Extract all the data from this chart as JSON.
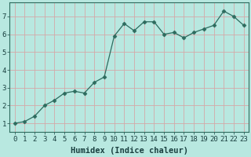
{
  "x": [
    0,
    1,
    2,
    3,
    4,
    5,
    6,
    7,
    8,
    9,
    10,
    11,
    12,
    13,
    14,
    15,
    16,
    17,
    18,
    19,
    20,
    21,
    22,
    23
  ],
  "y": [
    1.0,
    1.1,
    1.4,
    2.0,
    2.3,
    2.7,
    2.8,
    2.7,
    3.3,
    3.6,
    5.9,
    6.6,
    6.2,
    6.7,
    6.7,
    6.0,
    6.1,
    5.8,
    6.1,
    6.3,
    6.5,
    7.3,
    7.0,
    6.5
  ],
  "line_color": "#2d6b5e",
  "marker": "D",
  "marker_size": 2.5,
  "bg_color": "#b8e8e0",
  "grid_color": "#d4a8a8",
  "xlabel": "Humidex (Indice chaleur)",
  "xlabel_fontsize": 7.5,
  "tick_fontsize": 6.5,
  "ylim": [
    0.5,
    7.8
  ],
  "xlim": [
    -0.5,
    23.5
  ],
  "yticks": [
    1,
    2,
    3,
    4,
    5,
    6,
    7
  ],
  "xticks": [
    0,
    1,
    2,
    3,
    4,
    5,
    6,
    7,
    8,
    9,
    10,
    11,
    12,
    13,
    14,
    15,
    16,
    17,
    18,
    19,
    20,
    21,
    22,
    23
  ],
  "spine_color": "#2d6b5e",
  "tick_color": "#1a4040"
}
